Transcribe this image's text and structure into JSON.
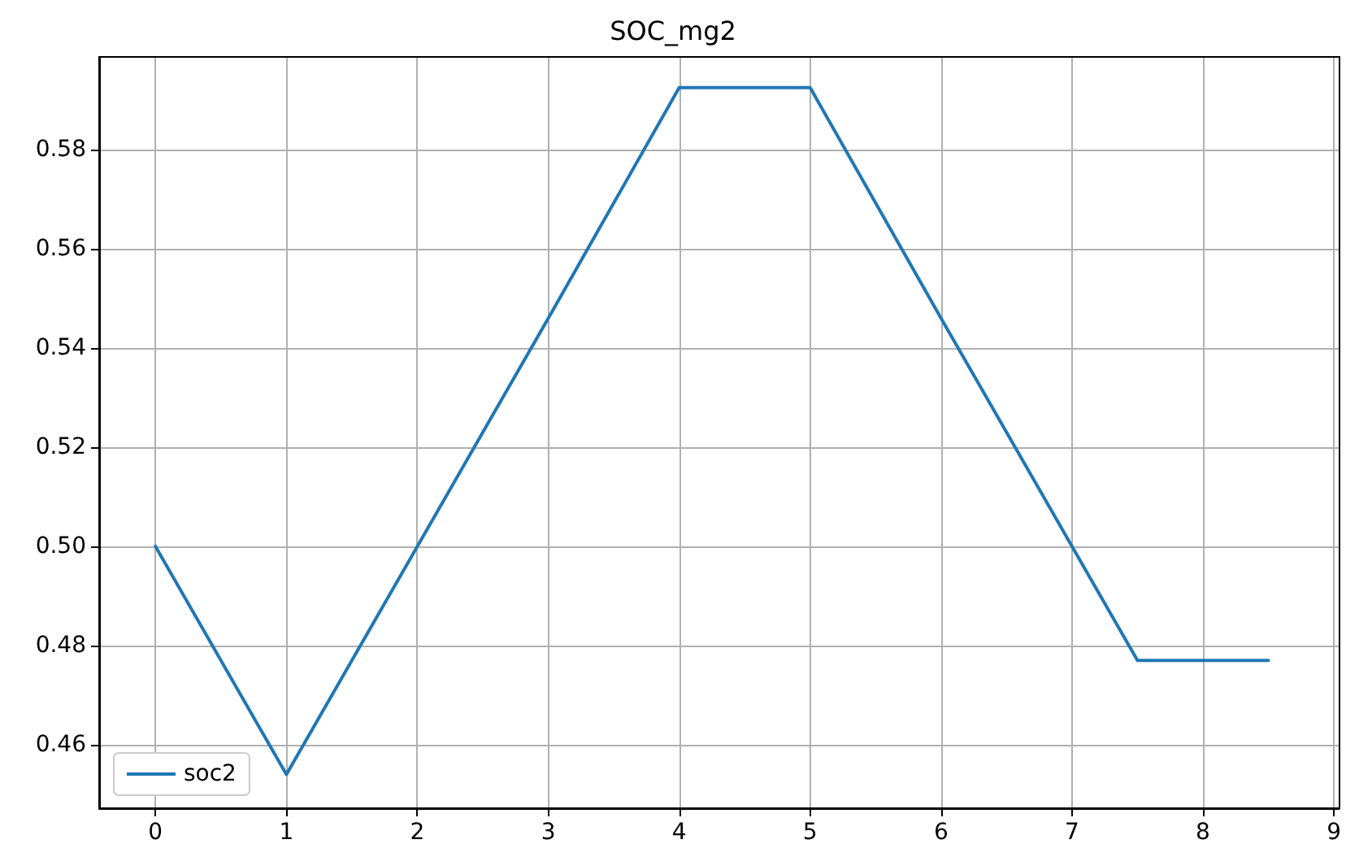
{
  "chart_data": {
    "type": "line",
    "title": "SOC_mg2",
    "x": [
      0,
      1,
      2,
      3,
      4,
      5,
      6,
      7,
      7.5,
      8.5
    ],
    "series": [
      {
        "name": "soc2",
        "color": "#1f77b4",
        "values": [
          0.5,
          0.454,
          0.5,
          0.546,
          0.5925,
          0.5925,
          0.546,
          0.5,
          0.477,
          0.477
        ]
      }
    ],
    "xlim": [
      -0.43,
      9.04
    ],
    "xticks": [
      0,
      1,
      2,
      3,
      4,
      5,
      6,
      7,
      8,
      9
    ],
    "ylim": [
      0.4472,
      0.5987
    ],
    "yticks": [
      {
        "value": 0.46,
        "label": "0.46"
      },
      {
        "value": 0.48,
        "label": "0.48"
      },
      {
        "value": 0.5,
        "label": "0.50"
      },
      {
        "value": 0.52,
        "label": "0.52"
      },
      {
        "value": 0.54,
        "label": "0.54"
      },
      {
        "value": 0.56,
        "label": "0.56"
      },
      {
        "value": 0.58,
        "label": "0.58"
      }
    ],
    "grid": true,
    "legend": "bottom left",
    "marker": "none",
    "line_style": "solid"
  }
}
